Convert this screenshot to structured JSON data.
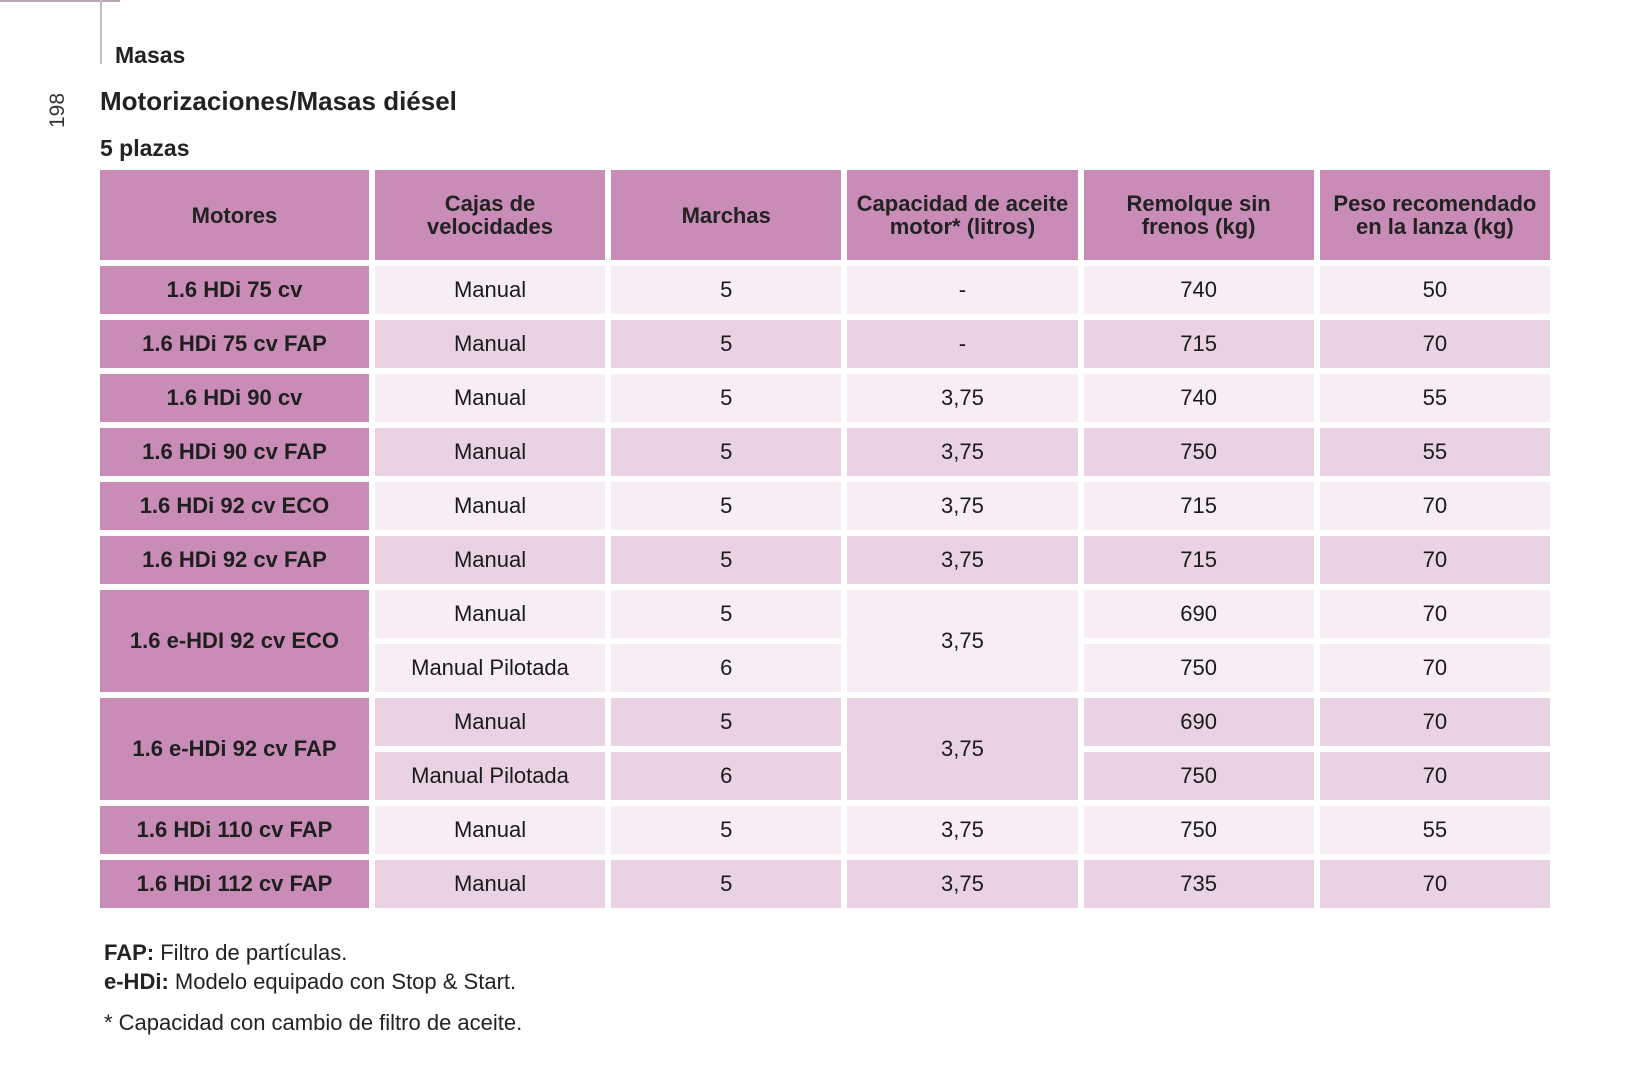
{
  "section": "Masas",
  "title": "Motorizaciones/Masas diésel",
  "page_number": "198",
  "subtitle": "5 plazas",
  "table": {
    "headers": [
      "Motores",
      "Cajas de velocidades",
      "Marchas",
      "Capacidad de aceite motor* (litros)",
      "Remolque sin frenos (kg)",
      "Peso recomendado en la lanza (kg)"
    ],
    "rows": [
      {
        "engine": "1.6 HDi 75 cv",
        "gearbox": "Manual",
        "gears": "5",
        "oil": "-",
        "trailer": "740",
        "nose": "50"
      },
      {
        "engine": "1.6 HDi 75 cv FAP",
        "gearbox": "Manual",
        "gears": "5",
        "oil": "-",
        "trailer": "715",
        "nose": "70"
      },
      {
        "engine": "1.6 HDi 90 cv",
        "gearbox": "Manual",
        "gears": "5",
        "oil": "3,75",
        "trailer": "740",
        "nose": "55"
      },
      {
        "engine": "1.6 HDi 90 cv FAP",
        "gearbox": "Manual",
        "gears": "5",
        "oil": "3,75",
        "trailer": "750",
        "nose": "55"
      },
      {
        "engine": "1.6 HDi 92 cv ECO",
        "gearbox": "Manual",
        "gears": "5",
        "oil": "3,75",
        "trailer": "715",
        "nose": "70"
      },
      {
        "engine": "1.6 HDi 92 cv FAP",
        "gearbox": "Manual",
        "gears": "5",
        "oil": "3,75",
        "trailer": "715",
        "nose": "70"
      },
      {
        "engine": "1.6 e-HDI 92 cv ECO",
        "oil": "3,75",
        "variants": [
          {
            "gearbox": "Manual",
            "gears": "5",
            "trailer": "690",
            "nose": "70"
          },
          {
            "gearbox": "Manual Pilotada",
            "gears": "6",
            "trailer": "750",
            "nose": "70"
          }
        ]
      },
      {
        "engine": "1.6 e-HDi 92 cv FAP",
        "oil": "3,75",
        "variants": [
          {
            "gearbox": "Manual",
            "gears": "5",
            "trailer": "690",
            "nose": "70"
          },
          {
            "gearbox": "Manual Pilotada",
            "gears": "6",
            "trailer": "750",
            "nose": "70"
          }
        ]
      },
      {
        "engine": "1.6 HDi 110 cv FAP",
        "gearbox": "Manual",
        "gears": "5",
        "oil": "3,75",
        "trailer": "750",
        "nose": "55"
      },
      {
        "engine": "1.6 HDi 112 cv FAP",
        "gearbox": "Manual",
        "gears": "5",
        "oil": "3,75",
        "trailer": "735",
        "nose": "70"
      }
    ]
  },
  "notes": {
    "fap_term": "FAP:",
    "fap_text": " Filtro de partículas.",
    "ehdi_term": "e-HDi:",
    "ehdi_text": " Modelo equipado con Stop & Start.",
    "footnote": "* Capacidad con cambio de filtro de aceite."
  }
}
